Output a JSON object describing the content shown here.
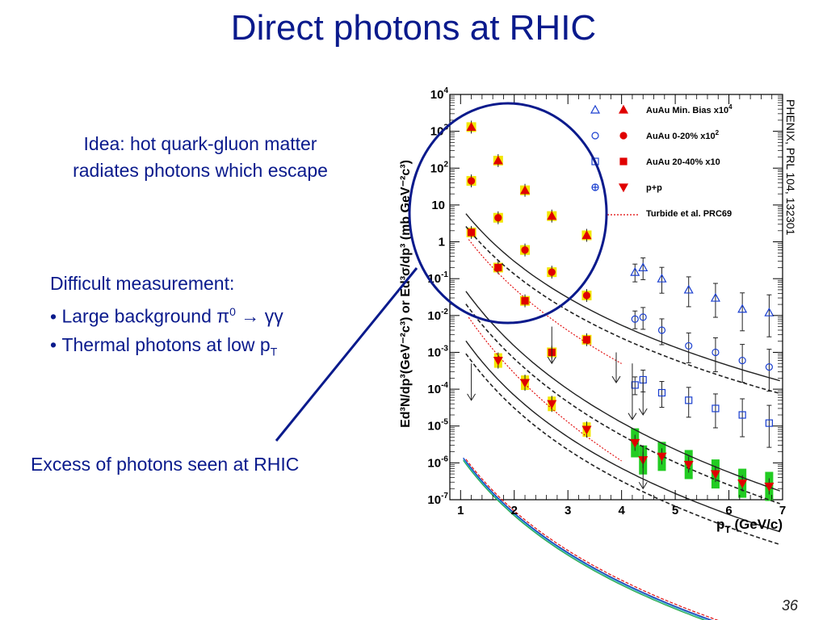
{
  "slide": {
    "title": "Direct photons at RHIC",
    "idea_line1": "Idea: hot quark-gluon matter",
    "idea_line2": "radiates photons which escape",
    "difficult_heading": "Difficult measurement:",
    "bullet1_text": "Large background π",
    "bullet1_sup": "0",
    "bullet1_rest": " → γγ",
    "bullet2_text": "Thermal photons at low p",
    "bullet2_sub": "T",
    "excess_label": "Excess of photons seen at RHIC",
    "citation": "PHENIX, PRL 104, 132301",
    "page_number": "36"
  },
  "colors": {
    "slide_text": "#0a1a8c",
    "highlight_circle": "#0a1a8c",
    "minbias": "#1a3fd0",
    "central": "#e00000",
    "pp": "#e00000",
    "syst_yellow": "#f2e600",
    "syst_green": "#22cc22",
    "theory_red": "#e00000"
  },
  "chart_data": {
    "type": "scatter",
    "x_label_main": "p",
    "x_label_sub": "T",
    "x_label_unit": " (GeV/c)",
    "y_label": "Ed³N/dp³(GeV⁻²c³) or Ed³σ/dp³ (mb GeV⁻²c³)",
    "xlim": [
      0.8,
      7.0
    ],
    "ylim": [
      1e-07,
      10000.0
    ],
    "y_scale": "log",
    "x_ticks": [
      "1",
      "2",
      "3",
      "4",
      "5",
      "6",
      "7"
    ],
    "y_ticks": [
      {
        "base": "10",
        "exp": "4",
        "value": 10000.0
      },
      {
        "base": "10",
        "exp": "3",
        "value": 1000.0
      },
      {
        "base": "10",
        "exp": "2",
        "value": 100.0
      },
      {
        "base": "10",
        "exp": "",
        "value": 10.0
      },
      {
        "base": "1",
        "exp": "",
        "value": 1
      },
      {
        "base": "10",
        "exp": "-1",
        "value": 0.1
      },
      {
        "base": "10",
        "exp": "-2",
        "value": 0.01
      },
      {
        "base": "10",
        "exp": "-3",
        "value": 0.001
      },
      {
        "base": "10",
        "exp": "-4",
        "value": 0.0001
      },
      {
        "base": "10",
        "exp": "-5",
        "value": 1e-05
      },
      {
        "base": "10",
        "exp": "-6",
        "value": 1e-06
      },
      {
        "base": "10",
        "exp": "-7",
        "value": 1e-07
      }
    ],
    "legend": [
      {
        "label": "AuAu Min. Bias x10",
        "sup": "4",
        "open": "triangle",
        "filled": "triangle"
      },
      {
        "label": "AuAu 0-20% x10",
        "sup": "2",
        "open": "circle",
        "filled": "circle"
      },
      {
        "label": "AuAu 20-40% x10",
        "sup": "",
        "open": "square",
        "filled": "square"
      },
      {
        "label": "p+p",
        "sup": "",
        "open": "cross",
        "filled": "triangle-down"
      },
      {
        "label": "Turbide et al. PRC69",
        "sup": "",
        "open": "dotted-line",
        "filled": ""
      }
    ],
    "series": [
      {
        "name": "AuAu Min. Bias x10",
        "sup": "4",
        "marker": "triangle",
        "low_pt": {
          "x": [
            1.2,
            1.7,
            2.2,
            2.7,
            3.35
          ],
          "y": [
            1300,
            160,
            25,
            5,
            1.5
          ]
        },
        "high_pt": {
          "x": [
            4.25,
            4.4,
            4.75,
            5.25,
            5.75,
            6.25,
            6.75
          ],
          "y": [
            0.15,
            0.2,
            0.1,
            0.05,
            0.03,
            0.015,
            0.012
          ]
        },
        "fit": {
          "A": 8500,
          "p0": 0.6,
          "n": 7.0
        }
      },
      {
        "name": "AuAu 0-20% x10",
        "sup": "2",
        "marker": "circle",
        "low_pt": {
          "x": [
            1.2,
            1.7,
            2.2,
            2.7,
            3.35
          ],
          "y": [
            45,
            4.5,
            0.6,
            0.15,
            0.035
          ]
        },
        "high_pt": {
          "x": [
            4.25,
            4.4,
            4.75,
            5.25,
            5.75,
            6.25,
            6.75
          ],
          "y": [
            0.008,
            0.009,
            0.004,
            0.0015,
            0.001,
            0.0006,
            0.0004
          ]
        },
        "fit": {
          "A": 80,
          "p0": 0.85,
          "n": 9.0
        }
      },
      {
        "name": "AuAu 20-40% x10",
        "sup": "",
        "marker": "square",
        "low_pt": {
          "x": [
            1.2,
            1.7,
            2.2,
            2.7,
            3.35
          ],
          "y": [
            1.8,
            0.2,
            0.025,
            0.001,
            0.0022
          ]
        },
        "high_pt": {
          "x": [
            4.25,
            4.4,
            4.75,
            5.25,
            5.75,
            6.25,
            6.75
          ],
          "y": [
            0.00013,
            0.00018,
            8e-05,
            5e-05,
            3e-05,
            2e-05,
            1.2e-05
          ]
        },
        "fit": {
          "A": 8.5,
          "p0": 0.6,
          "n": 8.0
        }
      },
      {
        "name": "p+p",
        "sup": "",
        "marker": "triangle-down",
        "x": [
          1.7,
          2.2,
          2.7,
          3.35,
          4.25,
          4.4,
          4.75,
          5.25,
          5.75,
          6.25,
          6.75
        ],
        "y": [
          0.0006,
          0.00015,
          4e-05,
          8e-06,
          3.5e-06,
          1.2e-06,
          1.5e-06,
          9e-07,
          5e-07,
          2.8e-07,
          2.3e-07
        ],
        "fit": {
          "A": 0.003,
          "p0": 0.6,
          "n": 7.6
        }
      }
    ]
  }
}
